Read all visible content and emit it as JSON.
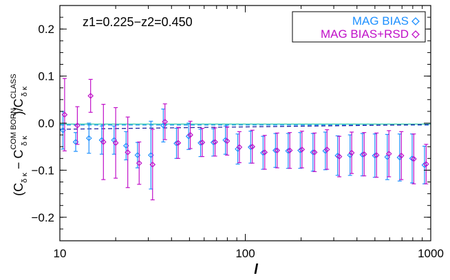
{
  "chart_data": {
    "type": "scatter",
    "annotation": "z1=0.225−z2=0.450",
    "xlabel": "l",
    "ylabel": {
      "prefix": "(C",
      "sub1": "δ κ",
      "mid": " − C",
      "sup2": "COM BORN",
      "sub2": "δ κ",
      "close": ")/C",
      "sup3": "CLASS",
      "sub3": "δ κ"
    },
    "x_scale": "log",
    "xlim": [
      10,
      1000
    ],
    "ylim": [
      -0.25,
      0.25
    ],
    "x_ticks": [
      10,
      100,
      1000
    ],
    "x_tick_labels": [
      "10",
      "100",
      "1000"
    ],
    "y_ticks": [
      -0.2,
      -0.1,
      0.0,
      0.1,
      0.2
    ],
    "y_tick_labels": [
      "−0.2",
      "−0.1",
      "0.0",
      "0.1",
      "0.2"
    ],
    "legend_position": "top-right",
    "series": [
      {
        "name": "MAG BIAS",
        "color": "#1e90ff",
        "marker": "diamond",
        "x": [
          10.5,
          12.3,
          14.5,
          17.0,
          19.8,
          23.0,
          26.5,
          31.3,
          36.5,
          43.0,
          50.0,
          58.0,
          68.0,
          79.0,
          92.0,
          108,
          126,
          147,
          172,
          200,
          234,
          273,
          318,
          371,
          433,
          505,
          589,
          687,
          802,
          935
        ],
        "y": [
          -0.015,
          -0.04,
          -0.032,
          -0.036,
          -0.036,
          -0.048,
          -0.068,
          -0.068,
          -0.005,
          -0.043,
          -0.028,
          -0.042,
          -0.041,
          -0.036,
          -0.055,
          -0.051,
          -0.063,
          -0.058,
          -0.059,
          -0.058,
          -0.062,
          -0.059,
          -0.069,
          -0.068,
          -0.067,
          -0.069,
          -0.072,
          -0.073,
          -0.075,
          -0.089
        ],
        "yerr": [
          0.04,
          0.02,
          0.032,
          0.03,
          0.03,
          0.03,
          0.027,
          0.072,
          0.035,
          0.032,
          0.028,
          0.029,
          0.029,
          0.03,
          0.032,
          0.034,
          0.035,
          0.036,
          0.037,
          0.038,
          0.04,
          0.04,
          0.042,
          0.043,
          0.045,
          0.046,
          0.048,
          0.05,
          0.052,
          0.04
        ]
      },
      {
        "name": "MAG BIAS+RSD",
        "color": "#c010c8",
        "marker": "diamond",
        "x": [
          10.5,
          12.3,
          14.5,
          17.0,
          19.8,
          23.0,
          26.5,
          31.3,
          36.5,
          43.0,
          50.0,
          58.0,
          68.0,
          79.0,
          92.0,
          108,
          126,
          147,
          172,
          200,
          234,
          273,
          318,
          371,
          433,
          505,
          589,
          687,
          802,
          935
        ],
        "y": [
          0.018,
          -0.005,
          0.058,
          -0.04,
          -0.042,
          -0.062,
          -0.085,
          -0.088,
          0.003,
          -0.042,
          -0.025,
          -0.041,
          -0.04,
          -0.038,
          -0.051,
          -0.05,
          -0.062,
          -0.058,
          -0.058,
          -0.056,
          -0.062,
          -0.056,
          -0.071,
          -0.063,
          -0.066,
          -0.068,
          -0.065,
          -0.069,
          -0.076,
          -0.087
        ],
        "yerr": [
          0.077,
          0.04,
          0.035,
          0.08,
          0.075,
          0.075,
          0.045,
          0.075,
          0.038,
          0.033,
          0.029,
          0.03,
          0.03,
          0.03,
          0.033,
          0.035,
          0.036,
          0.037,
          0.038,
          0.039,
          0.041,
          0.042,
          0.043,
          0.044,
          0.046,
          0.047,
          0.049,
          0.051,
          0.053,
          0.042
        ]
      }
    ],
    "reference_lines": [
      {
        "color": "#2ec8a8",
        "style": "solid",
        "x": [
          10,
          1000
        ],
        "y": [
          -0.002,
          -0.002
        ]
      },
      {
        "color": "#1e90ff",
        "style": "dashed",
        "x": [
          10,
          1000
        ],
        "y": [
          -0.004,
          -0.004
        ]
      },
      {
        "color": "#2020a0",
        "style": "dashed",
        "x": [
          10,
          1000
        ],
        "y": [
          -0.013,
          -0.003
        ]
      }
    ]
  }
}
